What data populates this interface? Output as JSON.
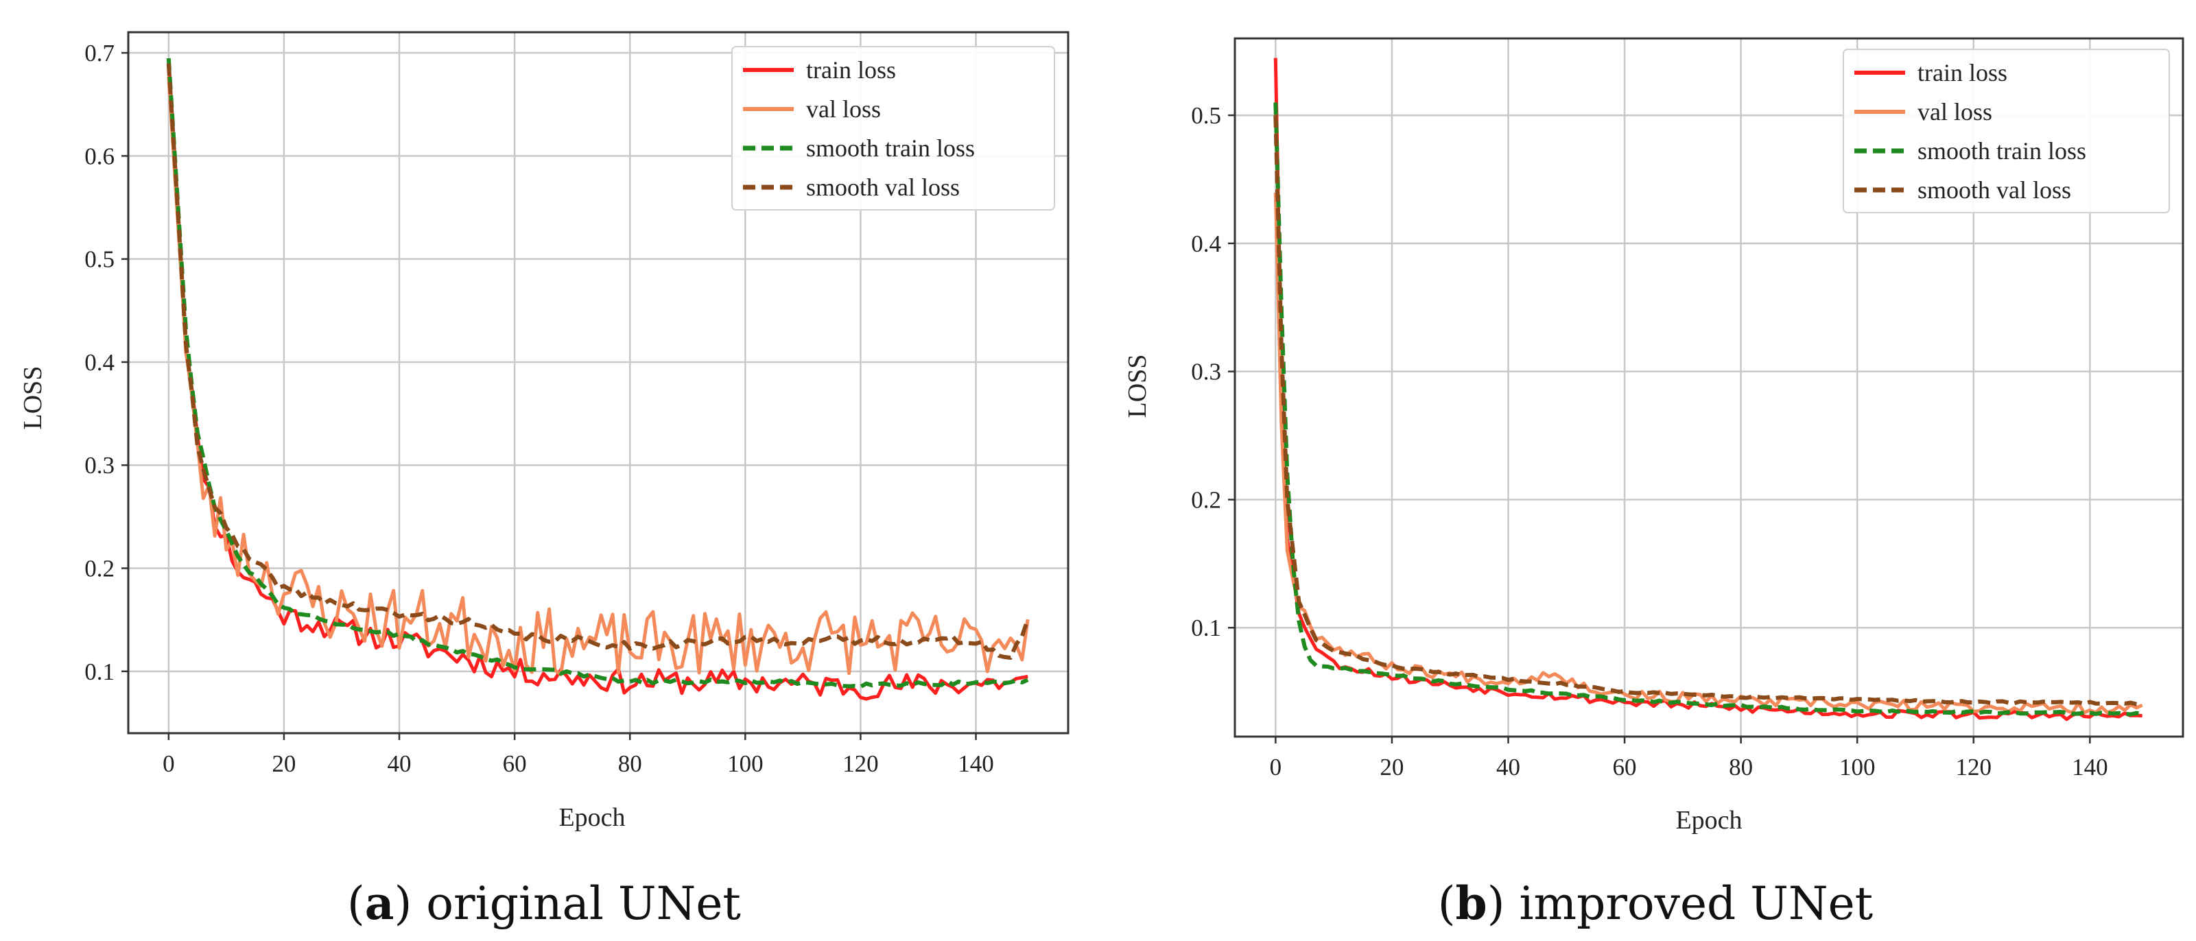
{
  "chart_data": [
    {
      "panel_id": "a",
      "type": "line",
      "caption_label": "a",
      "caption_text": "original UNet",
      "title": "",
      "xlabel": "Epoch",
      "ylabel": "LOSS",
      "xlim": [
        -7,
        156
      ],
      "ylim": [
        0.04,
        0.72
      ],
      "x_ticks": [
        0,
        20,
        40,
        60,
        80,
        100,
        120,
        140
      ],
      "y_ticks": [
        0.1,
        0.2,
        0.3,
        0.4,
        0.5,
        0.6,
        0.7
      ],
      "y_tick_labels": [
        "0.1",
        "0.2",
        "0.3",
        "0.4",
        "0.5",
        "0.6",
        "0.7"
      ],
      "grid": true,
      "legend_position": "top-right",
      "decay": {
        "start": 0.695,
        "rate": 0.18
      },
      "series": [
        {
          "name": "train loss",
          "kind": "train",
          "color": "#ff1f1f",
          "dashed": false,
          "anchors": [
            [
              0,
              0.695
            ],
            [
              3,
              0.42
            ],
            [
              5,
              0.32
            ],
            [
              8,
              0.25
            ],
            [
              12,
              0.2
            ],
            [
              20,
              0.155
            ],
            [
              30,
              0.14
            ],
            [
              40,
              0.13
            ],
            [
              50,
              0.115
            ],
            [
              60,
              0.1
            ],
            [
              80,
              0.09
            ],
            [
              100,
              0.09
            ],
            [
              120,
              0.085
            ],
            [
              149,
              0.09
            ]
          ],
          "noise": 0.012,
          "seed": 11
        },
        {
          "name": "val loss",
          "kind": "val",
          "color": "#f48a5a",
          "dashed": false,
          "anchors": [
            [
              0,
              0.68
            ],
            [
              3,
              0.41
            ],
            [
              5,
              0.3
            ],
            [
              8,
              0.25
            ],
            [
              12,
              0.22
            ],
            [
              20,
              0.18
            ],
            [
              30,
              0.155
            ],
            [
              40,
              0.15
            ],
            [
              50,
              0.145
            ],
            [
              60,
              0.13
            ],
            [
              80,
              0.125
            ],
            [
              100,
              0.13
            ],
            [
              120,
              0.13
            ],
            [
              140,
              0.125
            ],
            [
              149,
              0.14
            ]
          ],
          "noise": 0.032,
          "seed": 23
        },
        {
          "name": "smooth train loss",
          "kind": "smooth",
          "color": "#1f8a1f",
          "dashed": true,
          "anchors": [
            [
              0,
              0.695
            ],
            [
              3,
              0.43
            ],
            [
              5,
              0.33
            ],
            [
              8,
              0.26
            ],
            [
              12,
              0.21
            ],
            [
              20,
              0.16
            ],
            [
              30,
              0.145
            ],
            [
              40,
              0.135
            ],
            [
              50,
              0.12
            ],
            [
              60,
              0.105
            ],
            [
              80,
              0.09
            ],
            [
              100,
              0.09
            ],
            [
              120,
              0.087
            ],
            [
              149,
              0.09
            ]
          ],
          "noise": 0.002,
          "seed": 31
        },
        {
          "name": "smooth val loss",
          "kind": "smooth",
          "color": "#8a4a1a",
          "dashed": true,
          "anchors": [
            [
              0,
              0.69
            ],
            [
              3,
              0.42
            ],
            [
              5,
              0.32
            ],
            [
              8,
              0.26
            ],
            [
              12,
              0.22
            ],
            [
              20,
              0.18
            ],
            [
              30,
              0.165
            ],
            [
              40,
              0.155
            ],
            [
              50,
              0.15
            ],
            [
              60,
              0.135
            ],
            [
              80,
              0.125
            ],
            [
              100,
              0.13
            ],
            [
              120,
              0.13
            ],
            [
              140,
              0.13
            ],
            [
              146,
              0.11
            ],
            [
              149,
              0.15
            ]
          ],
          "noise": 0.004,
          "seed": 41
        }
      ]
    },
    {
      "panel_id": "b",
      "type": "line",
      "caption_label": "b",
      "caption_text": "improved UNet",
      "title": "",
      "xlabel": "Epoch",
      "ylabel": "LOSS",
      "xlim": [
        -7,
        156
      ],
      "ylim": [
        0.015,
        0.56
      ],
      "x_ticks": [
        0,
        20,
        40,
        60,
        80,
        100,
        120,
        140
      ],
      "y_ticks": [
        0.1,
        0.2,
        0.3,
        0.4,
        0.5
      ],
      "y_tick_labels": [
        "0.1",
        "0.2",
        "0.3",
        "0.4",
        "0.5"
      ],
      "grid": true,
      "legend_position": "top-right",
      "series": [
        {
          "name": "train loss",
          "kind": "train",
          "color": "#ff1f1f",
          "dashed": false,
          "anchors": [
            [
              0,
              0.545
            ],
            [
              1,
              0.3
            ],
            [
              2,
              0.17
            ],
            [
              4,
              0.11
            ],
            [
              7,
              0.085
            ],
            [
              10,
              0.072
            ],
            [
              20,
              0.062
            ],
            [
              30,
              0.055
            ],
            [
              40,
              0.05
            ],
            [
              60,
              0.042
            ],
            [
              80,
              0.037
            ],
            [
              100,
              0.033
            ],
            [
              120,
              0.032
            ],
            [
              149,
              0.031
            ]
          ],
          "noise": 0.003,
          "seed": 53
        },
        {
          "name": "val loss",
          "kind": "val",
          "color": "#f48a5a",
          "dashed": false,
          "anchors": [
            [
              0,
              0.44
            ],
            [
              1,
              0.26
            ],
            [
              2,
              0.16
            ],
            [
              4,
              0.12
            ],
            [
              7,
              0.095
            ],
            [
              10,
              0.085
            ],
            [
              20,
              0.07
            ],
            [
              30,
              0.063
            ],
            [
              40,
              0.058
            ],
            [
              45,
              0.062
            ],
            [
              48,
              0.066
            ],
            [
              52,
              0.055
            ],
            [
              60,
              0.048
            ],
            [
              80,
              0.043
            ],
            [
              100,
              0.04
            ],
            [
              120,
              0.038
            ],
            [
              149,
              0.037
            ]
          ],
          "noise": 0.004,
          "seed": 67
        },
        {
          "name": "smooth train loss",
          "kind": "smooth",
          "color": "#1f8a1f",
          "dashed": true,
          "anchors": [
            [
              0,
              0.51
            ],
            [
              1,
              0.35
            ],
            [
              2,
              0.22
            ],
            [
              3,
              0.15
            ],
            [
              4,
              0.105
            ],
            [
              5,
              0.085
            ],
            [
              6,
              0.074
            ],
            [
              7,
              0.07
            ],
            [
              10,
              0.069
            ],
            [
              20,
              0.063
            ],
            [
              30,
              0.057
            ],
            [
              40,
              0.052
            ],
            [
              60,
              0.044
            ],
            [
              80,
              0.039
            ],
            [
              100,
              0.035
            ],
            [
              120,
              0.034
            ],
            [
              149,
              0.033
            ]
          ],
          "noise": 0.0008,
          "seed": 71
        },
        {
          "name": "smooth val loss",
          "kind": "smooth",
          "color": "#8a4a1a",
          "dashed": true,
          "anchors": [
            [
              0,
              0.5
            ],
            [
              1,
              0.32
            ],
            [
              2,
              0.2
            ],
            [
              4,
              0.12
            ],
            [
              7,
              0.09
            ],
            [
              10,
              0.082
            ],
            [
              20,
              0.07
            ],
            [
              30,
              0.064
            ],
            [
              40,
              0.06
            ],
            [
              50,
              0.056
            ],
            [
              60,
              0.05
            ],
            [
              80,
              0.046
            ],
            [
              100,
              0.044
            ],
            [
              120,
              0.042
            ],
            [
              149,
              0.041
            ]
          ],
          "noise": 0.0008,
          "seed": 83
        }
      ]
    }
  ]
}
